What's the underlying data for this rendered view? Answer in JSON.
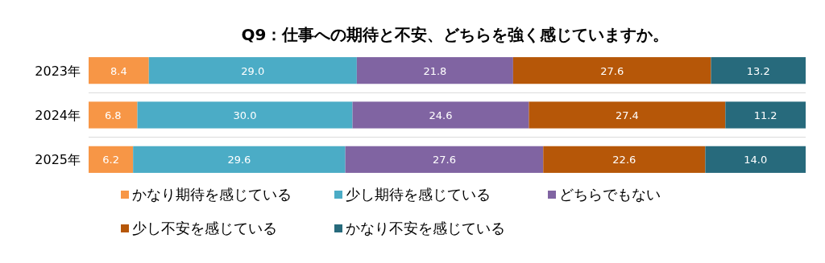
{
  "chart_data": {
    "type": "bar",
    "orientation": "horizontal",
    "stacked": true,
    "title": "Q9：仕事への期待と不安、どちらを強く感じていますか。",
    "categories": [
      "2023年",
      "2024年",
      "2025年"
    ],
    "series": [
      {
        "name": "かなり期待を感じている",
        "color": "#f79646",
        "values": [
          8.4,
          6.8,
          6.2
        ]
      },
      {
        "name": "少し期待を感じている",
        "color": "#4bacc6",
        "values": [
          29.0,
          30.0,
          29.6
        ],
        "value_labels": [
          "29.0",
          "30.0",
          "29.6"
        ]
      },
      {
        "name": "どちらでもない",
        "color": "#8064a2",
        "values": [
          21.8,
          24.6,
          27.6
        ]
      },
      {
        "name": "少し不安を感じている",
        "color": "#b65708",
        "values": [
          27.6,
          27.4,
          22.6
        ]
      },
      {
        "name": "かなり不安を感じている",
        "color": "#276a7c",
        "values": [
          13.2,
          11.2,
          14.0
        ],
        "value_labels": [
          "13.2",
          "11.2",
          "14.0"
        ]
      }
    ],
    "xlim": [
      0,
      100
    ],
    "tick_labels": "y",
    "data_labels": true,
    "legend": "bottom"
  }
}
